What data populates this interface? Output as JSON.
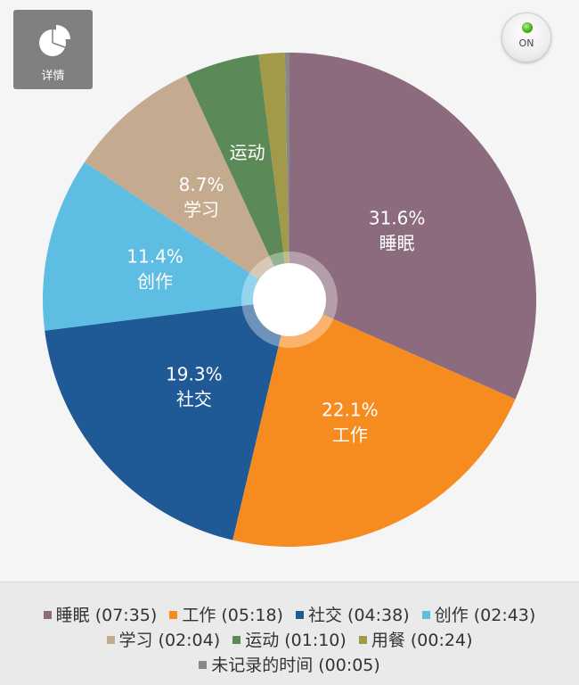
{
  "detail_button": {
    "label": "详情",
    "icon": "pie-chart-icon"
  },
  "toggle": {
    "label": "ON",
    "status_color": "#4caf1a"
  },
  "chart_data": {
    "type": "pie",
    "style": "donut",
    "slices": [
      {
        "name": "睡眠",
        "percent": 31.6,
        "duration": "07:35",
        "color": "#8b6b7d",
        "label_percent": "31.6%",
        "label_name": "睡眠"
      },
      {
        "name": "工作",
        "percent": 22.1,
        "duration": "05:18",
        "color": "#f68b1f",
        "label_percent": "22.1%",
        "label_name": "工作"
      },
      {
        "name": "社交",
        "percent": 19.3,
        "duration": "04:38",
        "color": "#1f5a96",
        "label_percent": "19.3%",
        "label_name": "社交"
      },
      {
        "name": "创作",
        "percent": 11.4,
        "duration": "02:43",
        "color": "#5dbde3",
        "label_percent": "11.4%",
        "label_name": "创作"
      },
      {
        "name": "学习",
        "percent": 8.7,
        "duration": "02:04",
        "color": "#c4ab8f",
        "label_percent": "8.7%",
        "label_name": "学习"
      },
      {
        "name": "运动",
        "percent": 4.9,
        "duration": "01:10",
        "color": "#5b8a58",
        "label_percent": "",
        "label_name": "运动"
      },
      {
        "name": "用餐",
        "percent": 1.7,
        "duration": "00:24",
        "color": "#a29a48",
        "label_percent": "",
        "label_name": ""
      },
      {
        "name": "未记录的时间",
        "percent": 0.3,
        "duration": "00:05",
        "color": "#888888",
        "label_percent": "",
        "label_name": ""
      }
    ]
  },
  "legend": {
    "items": [
      {
        "text": "睡眠 (07:35)",
        "color": "#8b6b7d"
      },
      {
        "text": "工作 (05:18)",
        "color": "#f68b1f"
      },
      {
        "text": "社交 (04:38)",
        "color": "#1f5a96"
      },
      {
        "text": "创作 (02:43)",
        "color": "#5dbde3"
      },
      {
        "text": "学习 (02:04)",
        "color": "#c4ab8f"
      },
      {
        "text": "运动 (01:10)",
        "color": "#5b8a58"
      },
      {
        "text": "用餐 (00:24)",
        "color": "#a29a48"
      },
      {
        "text": "未记录的时间 (00:05)",
        "color": "#888888"
      }
    ]
  }
}
